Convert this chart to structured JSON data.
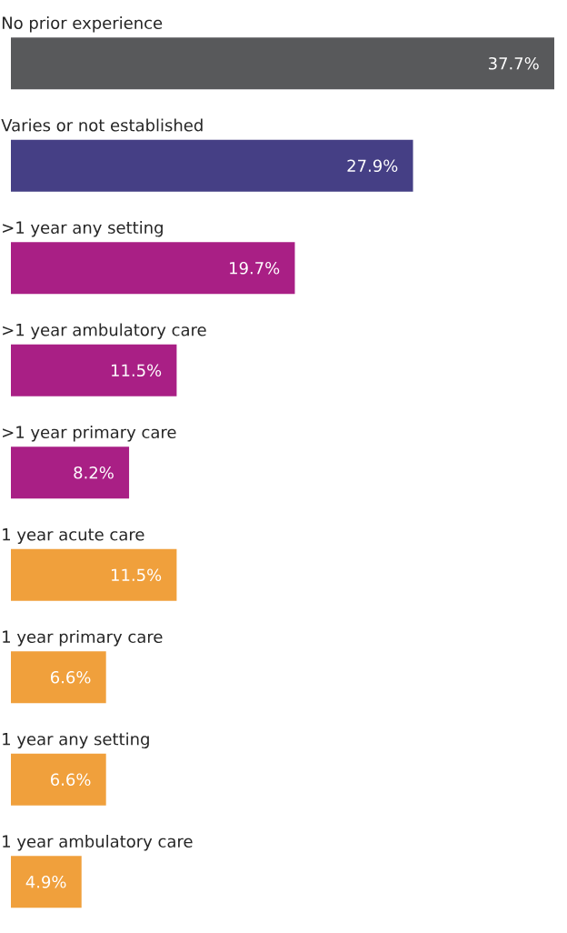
{
  "chart_data": {
    "type": "bar",
    "orientation": "horizontal",
    "categories": [
      "No prior experience",
      "Varies or not established",
      ">1 year any setting",
      ">1 year ambulatory care",
      ">1 year primary care",
      "1 year acute care",
      "1 year primary care",
      "1 year any setting",
      "1 year ambulatory care"
    ],
    "values": [
      37.7,
      27.9,
      19.7,
      11.5,
      8.2,
      11.5,
      6.6,
      6.6,
      4.9
    ],
    "value_labels": [
      "37.7%",
      "27.9%",
      "19.7%",
      "11.5%",
      "8.2%",
      "11.5%",
      "6.6%",
      "6.6%",
      "4.9%"
    ],
    "colors": [
      "#58595b",
      "#453f85",
      "#a91f85",
      "#a91f85",
      "#a91f85",
      "#f0a03c",
      "#f0a03c",
      "#f0a03c",
      "#f0a03c"
    ]
  }
}
